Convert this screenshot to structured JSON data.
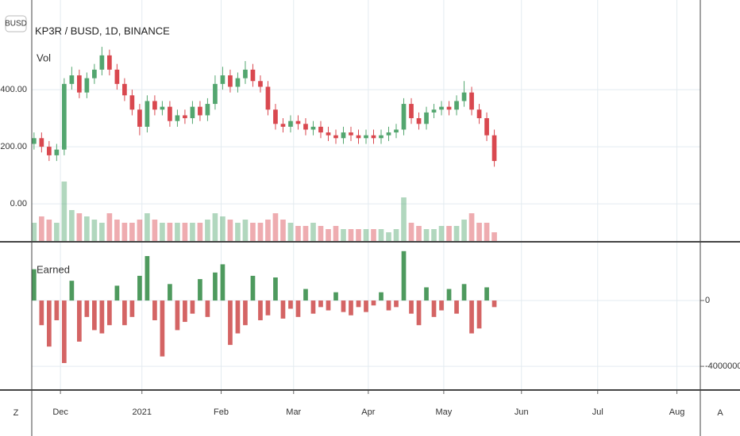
{
  "chart_data": [
    {
      "type": "candlestick",
      "title": "KP3R / BUSD, 1D, BINANCE",
      "open": [
        210,
        230,
        200,
        170,
        190,
        420,
        450,
        390,
        440,
        470,
        520,
        470,
        420,
        380,
        330,
        270,
        360,
        330,
        340,
        290,
        310,
        300,
        340,
        310,
        350,
        420,
        450,
        410,
        440,
        470,
        430,
        410,
        330,
        280,
        270,
        290,
        280,
        260,
        270,
        250,
        240,
        230,
        250,
        240,
        230,
        240,
        230,
        240,
        250,
        260,
        350,
        300,
        280,
        320,
        330,
        340,
        330,
        360,
        390,
        330,
        300,
        240
      ],
      "high": [
        250,
        250,
        220,
        210,
        440,
        480,
        470,
        460,
        490,
        550,
        540,
        490,
        440,
        400,
        350,
        380,
        380,
        360,
        360,
        330,
        330,
        360,
        360,
        370,
        450,
        480,
        470,
        460,
        500,
        490,
        450,
        430,
        350,
        300,
        310,
        310,
        300,
        290,
        290,
        270,
        260,
        270,
        270,
        260,
        260,
        260,
        260,
        270,
        280,
        370,
        370,
        320,
        340,
        350,
        360,
        360,
        380,
        430,
        410,
        350,
        320,
        260
      ],
      "low": [
        190,
        180,
        150,
        150,
        170,
        400,
        370,
        370,
        420,
        450,
        450,
        400,
        360,
        310,
        240,
        250,
        310,
        310,
        270,
        270,
        280,
        280,
        290,
        290,
        330,
        400,
        390,
        390,
        420,
        410,
        390,
        310,
        260,
        250,
        250,
        260,
        240,
        240,
        230,
        220,
        210,
        210,
        220,
        210,
        210,
        210,
        210,
        220,
        230,
        240,
        280,
        260,
        260,
        300,
        310,
        310,
        310,
        340,
        310,
        280,
        220,
        130
      ],
      "close": [
        230,
        200,
        170,
        190,
        420,
        450,
        390,
        440,
        470,
        520,
        470,
        420,
        380,
        330,
        270,
        360,
        330,
        340,
        290,
        310,
        300,
        340,
        310,
        350,
        420,
        450,
        410,
        440,
        470,
        430,
        410,
        330,
        280,
        270,
        290,
        280,
        260,
        270,
        250,
        240,
        230,
        250,
        240,
        230,
        240,
        230,
        240,
        250,
        260,
        350,
        300,
        280,
        320,
        330,
        340,
        330,
        360,
        390,
        330,
        300,
        240,
        150
      ],
      "up_color": "#53a66f",
      "down_color": "#d9484f",
      "volume": {
        "name": "Vol",
        "values": [
          30,
          40,
          35,
          30,
          95,
          50,
          45,
          40,
          35,
          30,
          45,
          35,
          30,
          30,
          35,
          45,
          35,
          30,
          30,
          30,
          30,
          30,
          30,
          35,
          45,
          40,
          35,
          30,
          35,
          30,
          30,
          35,
          45,
          35,
          30,
          25,
          25,
          30,
          25,
          20,
          25,
          20,
          20,
          20,
          20,
          20,
          20,
          15,
          20,
          70,
          30,
          25,
          20,
          20,
          25,
          25,
          25,
          35,
          45,
          30,
          30,
          15
        ],
        "ylim": [
          0,
          100
        ]
      },
      "ylim": [
        -133,
        714
      ],
      "yticks": [
        {
          "value": 0,
          "label": "0.00"
        },
        {
          "value": 200,
          "label": "200.00"
        },
        {
          "value": 400,
          "label": "400.00"
        }
      ],
      "xlim": [
        -0.3,
        88.3
      ],
      "xticks": [
        {
          "value": 3.5,
          "label": "Dec"
        },
        {
          "value": 14.3,
          "label": "2021"
        },
        {
          "value": 24.8,
          "label": "Feb"
        },
        {
          "value": 34.4,
          "label": "Mar"
        },
        {
          "value": 44.3,
          "label": "Apr"
        },
        {
          "value": 54.3,
          "label": "May"
        },
        {
          "value": 64.6,
          "label": "Jun"
        },
        {
          "value": 74.7,
          "label": "Jul"
        },
        {
          "value": 85.2,
          "label": "Aug"
        }
      ],
      "grid": true
    },
    {
      "type": "bar",
      "title": "Earned",
      "values": [
        1900000,
        -1500000,
        -2800000,
        -1200000,
        -3800000,
        1200000,
        -2500000,
        -1000000,
        -1800000,
        -2000000,
        -1500000,
        900000,
        -1500000,
        -1000000,
        1500000,
        2700000,
        -1200000,
        -3400000,
        1000000,
        -1800000,
        -1300000,
        -800000,
        1300000,
        -1000000,
        1700000,
        2200000,
        -2700000,
        -2000000,
        -1500000,
        1500000,
        -1200000,
        -900000,
        1400000,
        -1100000,
        -500000,
        -1000000,
        700000,
        -800000,
        -400000,
        -600000,
        500000,
        -700000,
        -900000,
        -400000,
        -700000,
        -300000,
        500000,
        -600000,
        -400000,
        3000000,
        -800000,
        -1500000,
        800000,
        -1000000,
        -600000,
        700000,
        -800000,
        1000000,
        -2000000,
        -1700000,
        800000,
        -400000
      ],
      "up_color": "#4e9a5e",
      "down_color": "#d46464",
      "y2lim": [
        -5440000,
        3520000
      ],
      "y2ticks": [
        0,
        -4000000
      ],
      "grid": true
    }
  ],
  "ui": {
    "symbol_button": "BUSD",
    "left_button": "Z",
    "right_button": "A"
  }
}
